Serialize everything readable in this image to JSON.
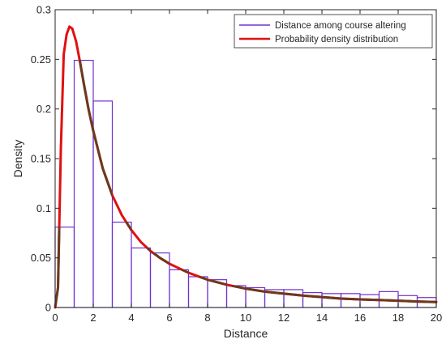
{
  "chart_data": {
    "type": "bar",
    "xlabel": "Distance",
    "ylabel": "Density",
    "xlim": [
      0,
      20
    ],
    "ylim": [
      0,
      0.3
    ],
    "xticks": [
      "0",
      "2",
      "4",
      "6",
      "8",
      "10",
      "12",
      "14",
      "16",
      "18",
      "20"
    ],
    "yticks": [
      "0",
      "0.05",
      "0.1",
      "0.15",
      "0.2",
      "0.25",
      "0.3"
    ],
    "grid": false,
    "legend_position": "top-right",
    "bin_width": 1,
    "series": [
      {
        "name": "Distance among course altering",
        "kind": "histogram",
        "color": "#7030d0",
        "bin_starts": [
          0,
          1,
          2,
          3,
          4,
          5,
          6,
          7,
          8,
          9,
          10,
          11,
          12,
          13,
          14,
          15,
          16,
          17,
          18,
          19
        ],
        "values": [
          0.081,
          0.249,
          0.208,
          0.086,
          0.06,
          0.055,
          0.038,
          0.031,
          0.028,
          0.022,
          0.02,
          0.018,
          0.018,
          0.015,
          0.014,
          0.014,
          0.013,
          0.016,
          0.012,
          0.01
        ]
      },
      {
        "name": "Probability density distribution",
        "kind": "curve",
        "color": "#e01010",
        "overlap_color": "#6b3a1c",
        "x": [
          0,
          0.15,
          0.3,
          0.45,
          0.6,
          0.75,
          0.9,
          1.1,
          1.3,
          1.5,
          1.75,
          2,
          2.5,
          3,
          3.5,
          4,
          4.5,
          5,
          5.5,
          6,
          7,
          8,
          9,
          10,
          11,
          12,
          13,
          14,
          15,
          16,
          17,
          18,
          19,
          20
        ],
        "y": [
          0,
          0.02,
          0.16,
          0.255,
          0.275,
          0.283,
          0.281,
          0.268,
          0.248,
          0.226,
          0.2,
          0.178,
          0.14,
          0.113,
          0.093,
          0.078,
          0.066,
          0.057,
          0.05,
          0.044,
          0.035,
          0.028,
          0.023,
          0.019,
          0.016,
          0.014,
          0.012,
          0.0105,
          0.009,
          0.0082,
          0.0075,
          0.0068,
          0.006,
          0.0055
        ]
      }
    ]
  }
}
